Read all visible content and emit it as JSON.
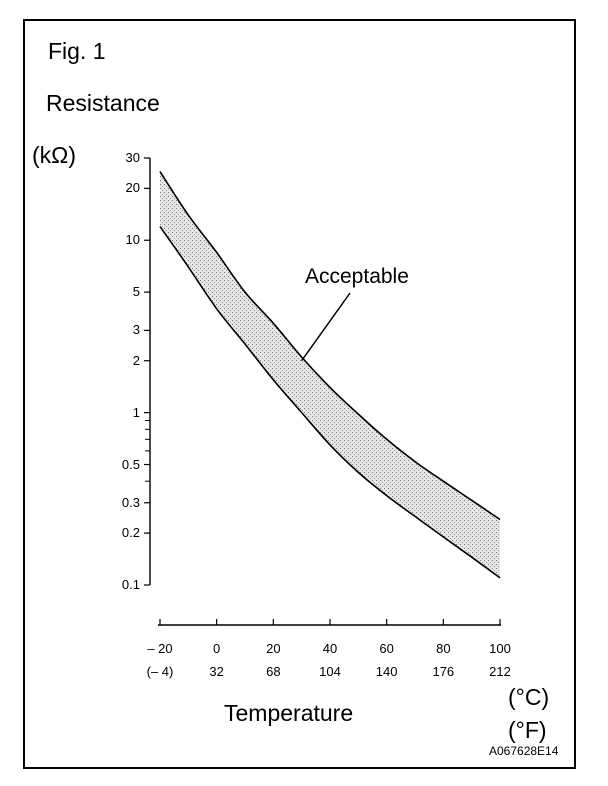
{
  "figure": {
    "label": "Fig. 1",
    "code": "A067628E14"
  },
  "chart_data": {
    "type": "area",
    "ylabel": "Resistance",
    "yunit": "(kΩ)",
    "xlabel": "Temperature",
    "xunit_c": "(°C)",
    "xunit_f": "(°F)",
    "yscale": "log",
    "ylim": [
      0.1,
      30
    ],
    "xlim": [
      -20,
      100
    ],
    "grid": false,
    "y_tick_values": [
      30,
      20,
      10,
      5,
      3,
      2,
      1,
      0.5,
      0.3,
      0.2,
      0.1
    ],
    "y_tick_labels": [
      "30",
      "20",
      "10",
      "5",
      "3",
      "2",
      "1",
      "0.5",
      "0.3",
      "0.2",
      "0.1"
    ],
    "y_minor_ticks": [
      0.4,
      0.6,
      0.7,
      0.8,
      0.9
    ],
    "x_ticks_c": [
      "– 20",
      "0",
      "20",
      "40",
      "60",
      "80",
      "100"
    ],
    "x_ticks_f": [
      "(– 4)",
      "32",
      "68",
      "104",
      "140",
      "176",
      "212"
    ],
    "x_tick_values": [
      -20,
      0,
      20,
      40,
      60,
      80,
      100
    ],
    "annotation": "Acceptable",
    "annotation_target": {
      "x": 30,
      "y": 2
    },
    "band_upper": {
      "x": [
        -20,
        -10,
        0,
        10,
        20,
        30,
        40,
        50,
        60,
        70,
        80,
        90,
        100
      ],
      "values": [
        25,
        14,
        8.5,
        5.0,
        3.3,
        2.1,
        1.4,
        0.98,
        0.7,
        0.52,
        0.4,
        0.31,
        0.24
      ]
    },
    "band_lower": {
      "x": [
        -20,
        -10,
        0,
        10,
        20,
        30,
        40,
        50,
        60,
        70,
        80,
        90,
        100
      ],
      "values": [
        12,
        7.0,
        4.0,
        2.5,
        1.55,
        1.0,
        0.65,
        0.45,
        0.33,
        0.25,
        0.19,
        0.145,
        0.11
      ]
    }
  },
  "colors": {
    "line": "#000000",
    "band_fill": "#d8d8d8"
  }
}
